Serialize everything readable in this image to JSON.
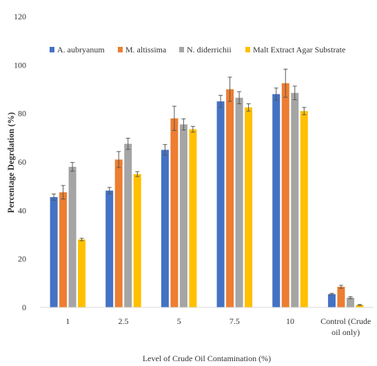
{
  "chart_data": {
    "type": "bar",
    "title": "",
    "xlabel": "Level of Crude Oil Contamination (%)",
    "ylabel": "Percentage Degrdation (%)",
    "ylim": [
      0,
      120
    ],
    "yticks": [
      0,
      20,
      40,
      60,
      80,
      100,
      120
    ],
    "grid": false,
    "legend_position": "top",
    "categories": [
      "1",
      "2.5",
      "5",
      "7.5",
      "10",
      [
        "Control (Crude",
        "oil only)"
      ]
    ],
    "series": [
      {
        "name": "A. aubryanum",
        "color": "#4472C4",
        "values": [
          45.5,
          48.2,
          65.0,
          85.0,
          88.0,
          5.5
        ],
        "errors": [
          1.3,
          1.3,
          2.2,
          2.5,
          2.5,
          0.3
        ]
      },
      {
        "name": "M. altissima",
        "color": "#ED7D31",
        "values": [
          47.5,
          61.0,
          78.0,
          90.0,
          92.5,
          8.5
        ],
        "errors": [
          2.8,
          3.3,
          5.0,
          5.0,
          5.8,
          0.6
        ]
      },
      {
        "name": "N. diderrichii",
        "color": "#A5A5A5",
        "values": [
          58.0,
          67.5,
          75.5,
          86.5,
          88.5,
          4.0
        ],
        "errors": [
          1.8,
          2.3,
          2.3,
          2.5,
          2.8,
          0.4
        ]
      },
      {
        "name": "Malt Extract Agar Substrate",
        "color": "#FFC000",
        "values": [
          28.0,
          55.0,
          73.5,
          82.5,
          81.0,
          1.0
        ],
        "errors": [
          0.5,
          1.0,
          1.2,
          1.5,
          1.5,
          0.2
        ]
      }
    ]
  }
}
